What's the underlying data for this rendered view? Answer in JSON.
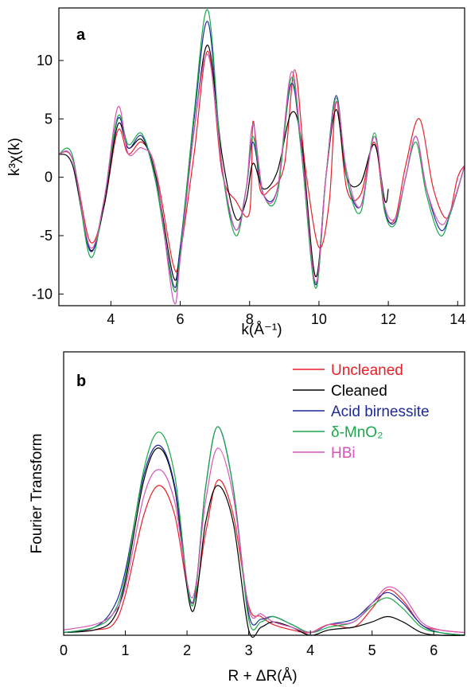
{
  "chart_data": [
    {
      "type": "line",
      "panel_label": "a",
      "xlabel": "k(Å⁻¹)",
      "ylabel": "k³χ(k)",
      "xlim": [
        2.5,
        14.2
      ],
      "ylim": [
        -11,
        14.5
      ],
      "xticks": [
        4,
        6,
        8,
        10,
        12,
        14
      ],
      "yticks": [
        -10,
        -5,
        0,
        5,
        10
      ],
      "grid": false,
      "legend": "none",
      "series": [
        {
          "color": "#e8202a",
          "x": [
            2.5,
            2.9,
            3.4,
            3.8,
            4.2,
            4.5,
            4.9,
            5.3,
            5.8,
            6.0,
            6.4,
            6.8,
            7.2,
            7.6,
            8.0,
            8.1,
            8.3,
            8.6,
            9.0,
            9.3,
            9.6,
            10.0,
            10.3,
            10.5,
            10.8,
            11.2,
            11.6,
            11.9,
            12.2,
            12.5,
            12.9,
            13.3,
            13.7,
            14.0,
            14.2
          ],
          "y": [
            2.0,
            1.5,
            -5.5,
            -2.5,
            4.0,
            2.0,
            3.0,
            0.5,
            -7.5,
            -6.5,
            2.0,
            10.8,
            0.5,
            -2.0,
            -3.0,
            4.8,
            -1.0,
            -1.0,
            1.0,
            9.2,
            1.0,
            -6.0,
            -2.0,
            6.5,
            -1.0,
            -1.5,
            3.0,
            -3.0,
            -3.5,
            1.0,
            5.0,
            -1.0,
            -3.5,
            0.0,
            1.0
          ]
        },
        {
          "color": "#000000",
          "x": [
            2.5,
            2.9,
            3.4,
            3.8,
            4.2,
            4.5,
            4.9,
            5.3,
            5.8,
            6.0,
            6.4,
            6.8,
            7.2,
            7.6,
            7.9,
            8.1,
            8.4,
            8.8,
            9.2,
            9.5,
            9.9,
            10.2,
            10.5,
            10.8,
            11.2,
            11.6,
            11.9,
            12.0
          ],
          "y": [
            2.0,
            1.0,
            -6.2,
            -2.5,
            4.5,
            2.5,
            3.2,
            0.0,
            -8.5,
            -6.0,
            4.0,
            11.3,
            2.0,
            -3.5,
            -2.0,
            1.2,
            -1.0,
            0.5,
            5.5,
            3.0,
            -8.5,
            0.0,
            5.8,
            0.0,
            -0.5,
            2.8,
            -2.0,
            -1.0
          ]
        },
        {
          "color": "#1f2a9a",
          "x": [
            2.5,
            2.9,
            3.4,
            3.8,
            4.2,
            4.5,
            4.9,
            5.3,
            5.8,
            6.0,
            6.4,
            6.8,
            7.2,
            7.6,
            7.9,
            8.1,
            8.4,
            8.8,
            9.2,
            9.5,
            9.9,
            10.2,
            10.5,
            10.8,
            11.2,
            11.6,
            11.9,
            12.2,
            12.5,
            12.8,
            13.1,
            13.5,
            13.8,
            14.2
          ],
          "y": [
            2.0,
            1.5,
            -6.3,
            -2.0,
            5.0,
            2.5,
            3.5,
            -0.5,
            -9.2,
            -6.0,
            5.0,
            13.3,
            1.0,
            -4.5,
            -1.0,
            3.0,
            -1.5,
            -1.0,
            8.0,
            2.0,
            -9.2,
            0.0,
            7.0,
            0.0,
            -2.5,
            3.5,
            -2.8,
            -3.8,
            0.0,
            3.5,
            -1.0,
            -4.5,
            -3.0,
            1.0
          ]
        },
        {
          "color": "#1aa84a",
          "x": [
            2.5,
            2.9,
            3.4,
            3.8,
            4.2,
            4.5,
            4.9,
            5.3,
            5.8,
            6.0,
            6.4,
            6.8,
            7.2,
            7.6,
            7.9,
            8.1,
            8.4,
            8.8,
            9.2,
            9.5,
            9.9,
            10.2,
            10.5,
            10.8,
            11.2,
            11.6,
            11.9,
            12.2,
            12.5,
            12.8,
            13.1,
            13.5,
            13.8,
            14.2
          ],
          "y": [
            2.0,
            1.8,
            -6.8,
            -2.0,
            5.2,
            2.8,
            3.7,
            -0.5,
            -9.5,
            -6.5,
            5.5,
            14.3,
            1.0,
            -5.0,
            -1.0,
            3.5,
            -1.5,
            -1.5,
            8.5,
            2.0,
            -9.5,
            0.0,
            6.8,
            0.0,
            -3.0,
            3.8,
            -3.0,
            -4.0,
            0.0,
            3.0,
            -1.5,
            -5.0,
            -3.0,
            1.0
          ]
        },
        {
          "color": "#d555b8",
          "x": [
            2.5,
            2.9,
            3.4,
            3.8,
            4.2,
            4.5,
            4.9,
            5.3,
            5.8,
            6.0,
            6.4,
            6.8,
            7.2,
            7.6,
            7.9,
            8.1,
            8.4,
            8.8,
            9.2,
            9.5,
            9.9,
            10.2,
            10.5,
            10.8,
            11.2,
            11.6,
            11.9,
            12.2,
            12.5,
            12.8,
            13.1,
            13.5,
            13.8,
            14.2
          ],
          "y": [
            2.0,
            1.5,
            -6.0,
            -2.0,
            6.0,
            2.0,
            2.5,
            0.5,
            -10.5,
            -7.0,
            4.0,
            10.5,
            1.0,
            -4.5,
            -1.0,
            4.5,
            -1.5,
            -1.0,
            9.0,
            2.5,
            -9.0,
            0.0,
            6.5,
            0.5,
            -2.5,
            3.5,
            -2.5,
            -3.5,
            0.0,
            3.5,
            -1.0,
            -4.0,
            -2.8,
            1.0
          ]
        }
      ]
    },
    {
      "type": "line",
      "panel_label": "b",
      "xlabel": "R + ΔR(Å)",
      "ylabel": "Fourier Transform",
      "xlim": [
        0,
        6.5
      ],
      "ylim": [
        0,
        1.06
      ],
      "xticks": [
        0,
        1,
        2,
        3,
        4,
        5,
        6
      ],
      "grid": false,
      "legend": "top-right",
      "series": [
        {
          "name": "Uncleaned",
          "color": "#e8202a",
          "x": [
            0,
            0.5,
            0.8,
            1.0,
            1.3,
            1.55,
            1.8,
            2.08,
            2.3,
            2.5,
            2.75,
            3.0,
            3.2,
            3.4,
            3.7,
            4.0,
            4.3,
            4.7,
            5.0,
            5.25,
            5.5,
            5.8,
            6.1,
            6.5
          ],
          "y": [
            0.01,
            0.02,
            0.04,
            0.15,
            0.45,
            0.56,
            0.45,
            0.12,
            0.38,
            0.58,
            0.45,
            0.11,
            0.07,
            0.04,
            0.02,
            0.01,
            0.04,
            0.03,
            0.1,
            0.17,
            0.13,
            0.04,
            0.02,
            0.01
          ]
        },
        {
          "name": "Cleaned",
          "color": "#000000",
          "x": [
            0,
            0.5,
            0.8,
            1.0,
            1.3,
            1.55,
            1.8,
            2.08,
            2.3,
            2.5,
            2.75,
            3.0,
            3.2,
            3.4,
            3.7,
            4.0,
            4.3,
            4.7,
            5.0,
            5.25,
            5.5,
            5.8,
            6.1,
            6.5
          ],
          "y": [
            0.01,
            0.02,
            0.06,
            0.2,
            0.58,
            0.7,
            0.55,
            0.09,
            0.42,
            0.56,
            0.42,
            0.02,
            0.03,
            0.05,
            0.03,
            0.0,
            0.02,
            0.03,
            0.05,
            0.07,
            0.05,
            0.01,
            0.0,
            0.0
          ]
        },
        {
          "name": "Acid birnessite",
          "color": "#1f2a9a",
          "x": [
            0,
            0.5,
            0.8,
            1.0,
            1.3,
            1.55,
            1.8,
            2.08,
            2.3,
            2.5,
            2.75,
            3.0,
            3.2,
            3.4,
            3.7,
            4.0,
            4.3,
            4.7,
            5.0,
            5.25,
            5.5,
            5.8,
            6.1,
            6.5
          ],
          "y": [
            0.01,
            0.03,
            0.1,
            0.24,
            0.6,
            0.71,
            0.56,
            0.12,
            0.55,
            0.78,
            0.55,
            0.08,
            0.06,
            0.07,
            0.04,
            0.01,
            0.04,
            0.06,
            0.12,
            0.16,
            0.12,
            0.04,
            0.01,
            0.0
          ]
        },
        {
          "name": "δ-MnO₂",
          "color": "#1aa84a",
          "x": [
            0,
            0.5,
            0.8,
            1.0,
            1.3,
            1.55,
            1.8,
            2.08,
            2.3,
            2.5,
            2.75,
            3.0,
            3.2,
            3.4,
            3.7,
            4.0,
            4.3,
            4.7,
            5.0,
            5.25,
            5.5,
            5.8,
            6.1,
            6.5
          ],
          "y": [
            0.01,
            0.03,
            0.08,
            0.22,
            0.62,
            0.76,
            0.6,
            0.11,
            0.55,
            0.78,
            0.55,
            0.06,
            0.05,
            0.07,
            0.04,
            0.01,
            0.03,
            0.05,
            0.11,
            0.14,
            0.1,
            0.03,
            0.01,
            0.0
          ]
        },
        {
          "name": "HBi",
          "color": "#d555b8",
          "x": [
            0,
            0.5,
            0.8,
            1.0,
            1.3,
            1.55,
            1.8,
            2.08,
            2.3,
            2.5,
            2.75,
            3.0,
            3.2,
            3.4,
            3.7,
            4.0,
            4.3,
            4.7,
            5.0,
            5.25,
            5.5,
            5.8,
            6.1,
            6.5
          ],
          "y": [
            0.02,
            0.04,
            0.08,
            0.18,
            0.52,
            0.62,
            0.5,
            0.14,
            0.5,
            0.7,
            0.52,
            0.1,
            0.08,
            0.05,
            0.03,
            0.01,
            0.04,
            0.05,
            0.12,
            0.18,
            0.15,
            0.05,
            0.02,
            0.01
          ]
        }
      ]
    }
  ]
}
